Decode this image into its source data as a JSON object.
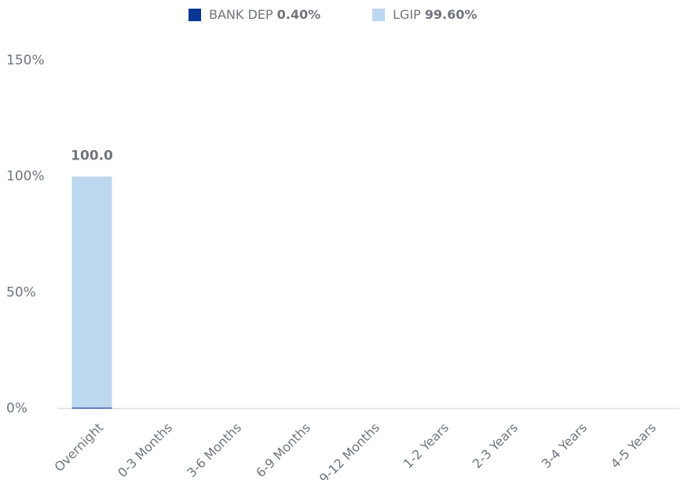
{
  "chart_data": {
    "type": "stacked_bar",
    "categories": [
      "Overnight",
      "0-3 Months",
      "3-6 Months",
      "6-9 Months",
      "9-12 Months",
      "1-2 Years",
      "2-3 Years",
      "3-4 Years",
      "4-5 Years"
    ],
    "series": [
      {
        "name": "BANK DEP",
        "color": "#0a3696",
        "share": 0.4,
        "share_label": "0.40%",
        "values": [
          0.4,
          0,
          0,
          0,
          0,
          0,
          0,
          0,
          0
        ]
      },
      {
        "name": "LGIP",
        "color": "#bdd7ee",
        "share": 99.6,
        "share_label": "99.60%",
        "values": [
          99.6,
          0,
          0,
          0,
          0,
          0,
          0,
          0,
          0
        ]
      }
    ],
    "totals": [
      100,
      null,
      null,
      null,
      null,
      null,
      null,
      null,
      null
    ],
    "total_labels": [
      "100.0",
      null,
      null,
      null,
      null,
      null,
      null,
      null,
      null
    ],
    "ylim": [
      0,
      150
    ],
    "yticks": [
      {
        "value": 0,
        "label": "0%"
      },
      {
        "value": 50,
        "label": "50%"
      },
      {
        "value": 100,
        "label": "100%"
      },
      {
        "value": 150,
        "label": "150%"
      }
    ],
    "grid": false,
    "legend": "top"
  }
}
